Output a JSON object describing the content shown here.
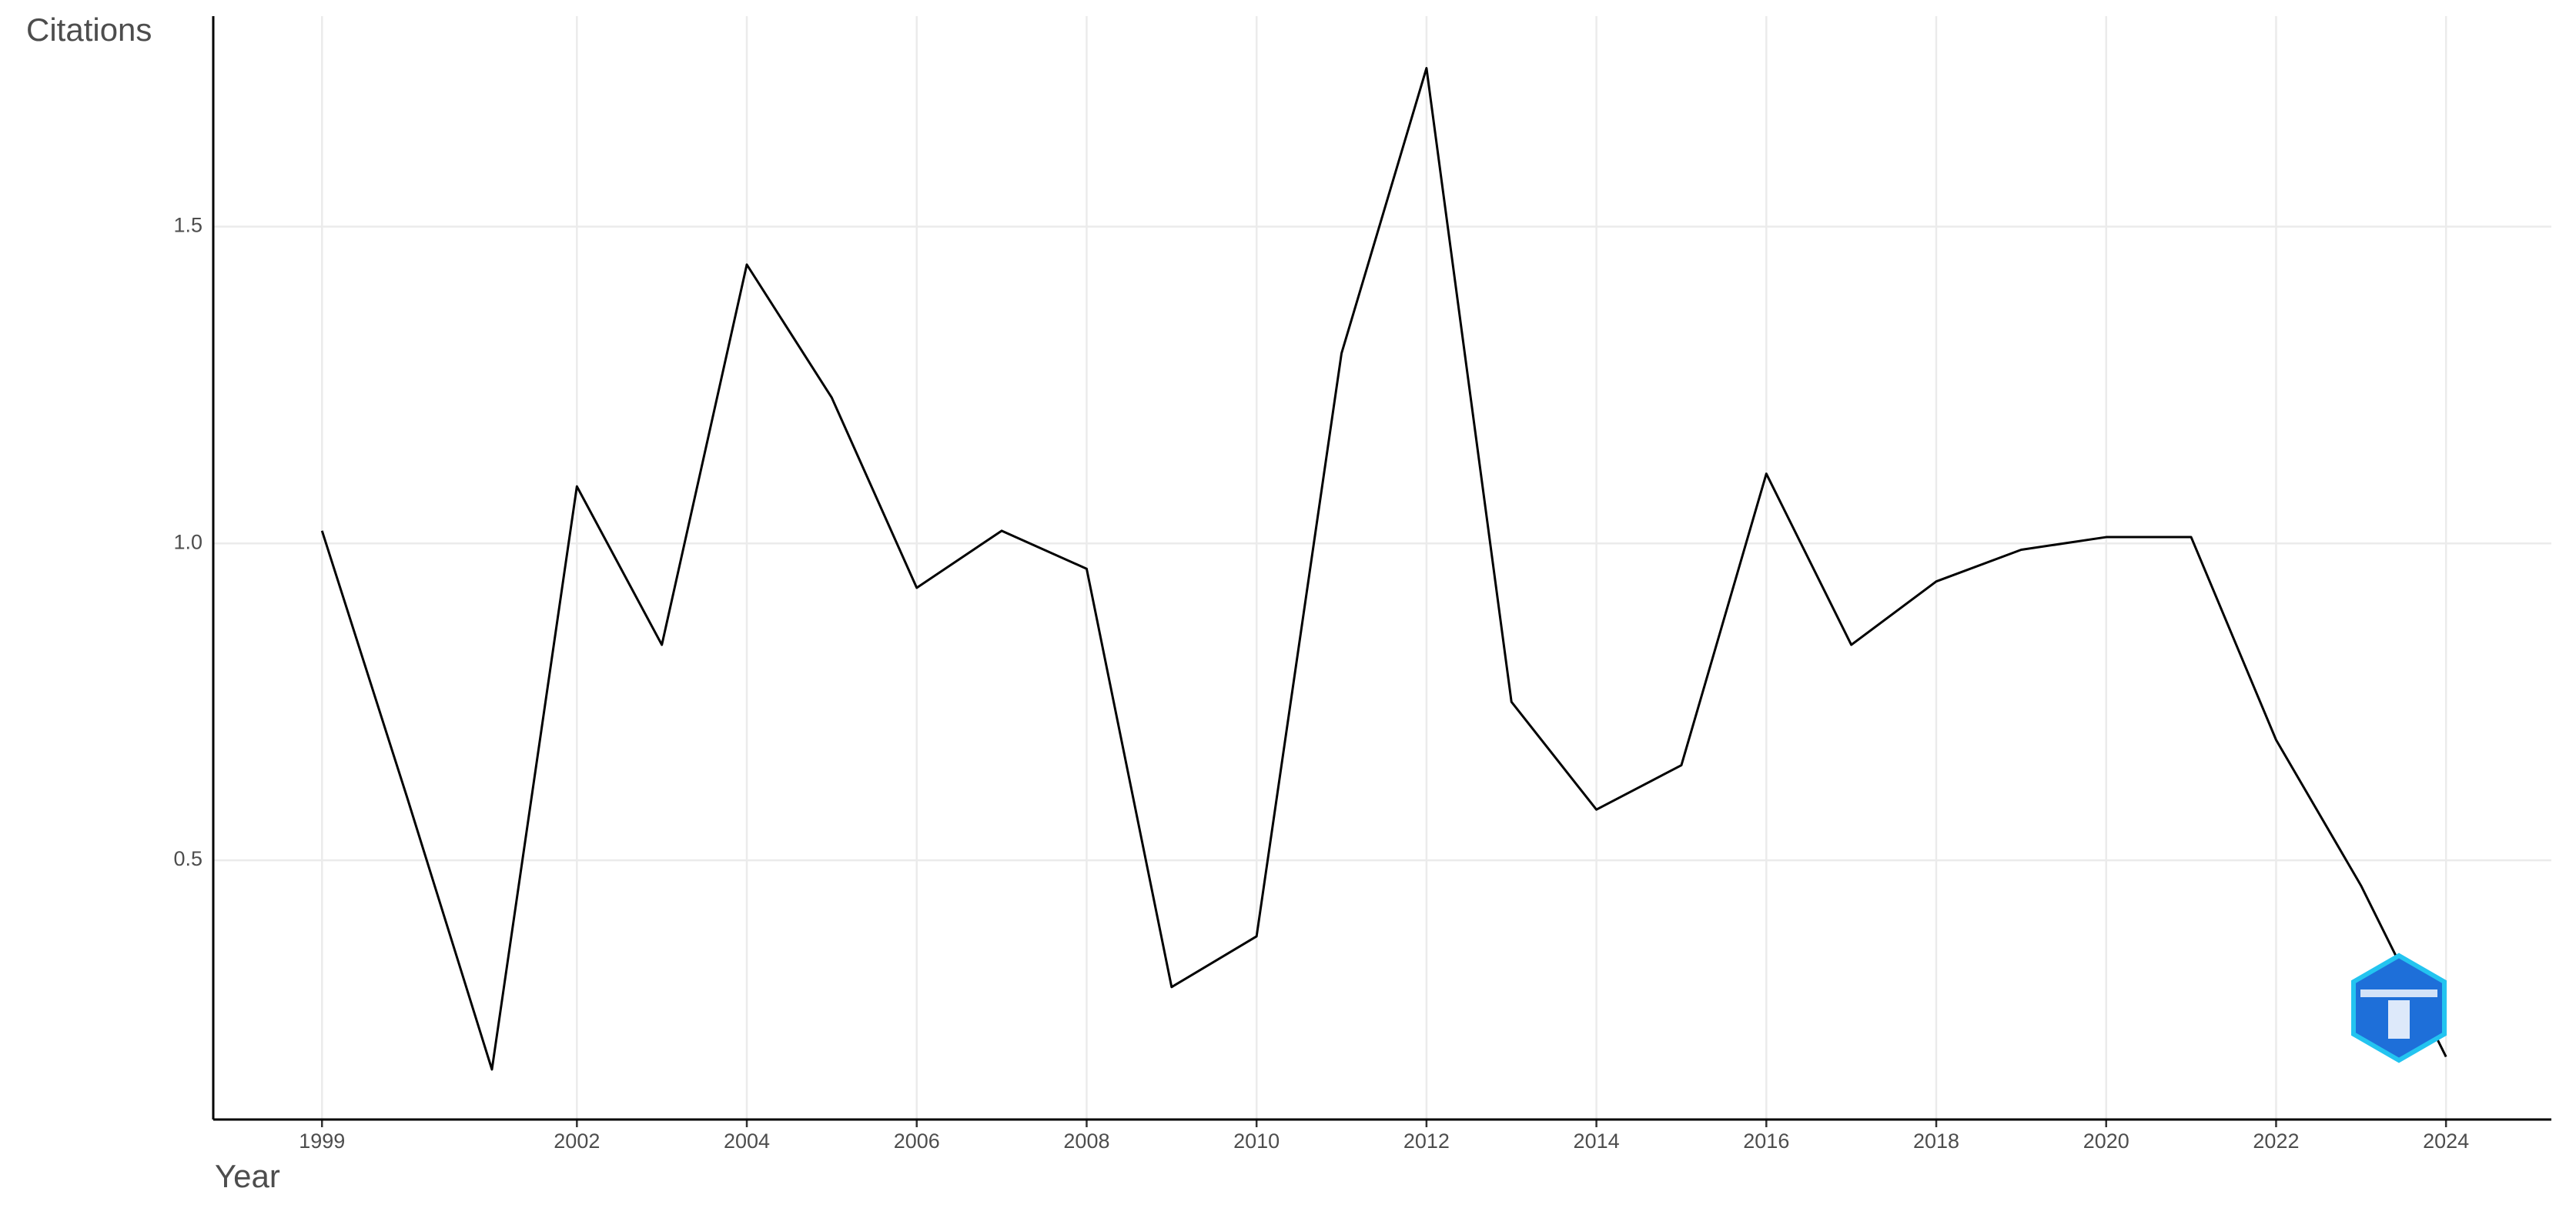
{
  "chart_data": {
    "type": "line",
    "y_label": "Citations",
    "x_label": "Year",
    "x": [
      1999,
      2000,
      2001,
      2002,
      2003,
      2004,
      2005,
      2006,
      2007,
      2008,
      2009,
      2010,
      2011,
      2012,
      2013,
      2014,
      2015,
      2016,
      2017,
      2018,
      2019,
      2020,
      2021,
      2022,
      2023,
      2024
    ],
    "values": [
      1.02,
      0.6,
      0.17,
      1.09,
      0.84,
      1.44,
      1.23,
      0.93,
      1.02,
      0.96,
      0.3,
      0.38,
      1.3,
      1.75,
      0.75,
      0.58,
      0.65,
      1.11,
      0.84,
      0.94,
      0.99,
      1.01,
      1.01,
      0.69,
      0.46,
      0.19
    ],
    "color": "#000000",
    "xlim": [
      1997.72,
      2025.24
    ],
    "ylim": [
      0.091,
      1.832
    ],
    "xticks": [
      1999,
      2002,
      2004,
      2006,
      2008,
      2010,
      2012,
      2014,
      2016,
      2018,
      2020,
      2022,
      2024
    ],
    "yticks": [
      {
        "value": 0.5,
        "label": "0.5"
      },
      {
        "value": 1,
        "label": "1.0"
      },
      {
        "value": 1.5,
        "label": "1.5"
      }
    ],
    "grid": true
  }
}
